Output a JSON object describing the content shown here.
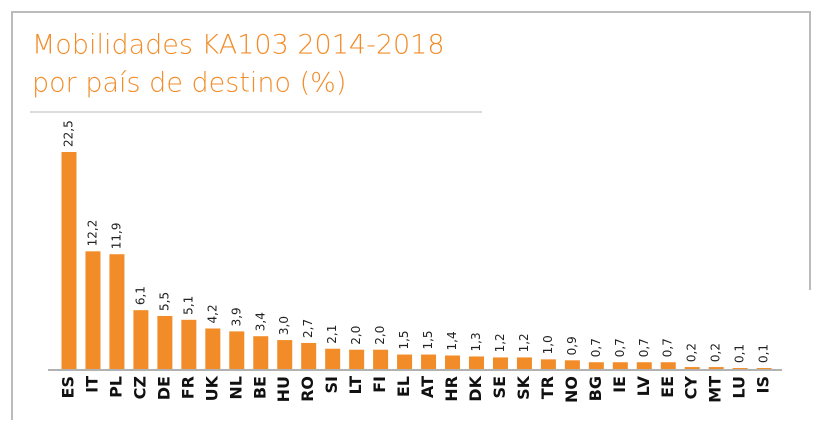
{
  "chart_data": {
    "type": "bar",
    "title_lines": [
      "Mobilidades KA103 2014-2018",
      "por país de destino (%)"
    ],
    "categories": [
      "ES",
      "IT",
      "PL",
      "CZ",
      "DE",
      "FR",
      "UK",
      "NL",
      "BE",
      "HU",
      "RO",
      "SI",
      "LT",
      "FI",
      "EL",
      "AT",
      "HR",
      "DK",
      "SE",
      "SK",
      "TR",
      "NO",
      "BG",
      "IE",
      "LV",
      "EE",
      "CY",
      "MT",
      "LU",
      "IS"
    ],
    "values": [
      22.5,
      12.2,
      11.9,
      6.1,
      5.5,
      5.1,
      4.2,
      3.9,
      3.4,
      3.0,
      2.7,
      2.1,
      2.0,
      2.0,
      1.5,
      1.5,
      1.4,
      1.3,
      1.2,
      1.2,
      1.0,
      0.9,
      0.7,
      0.7,
      0.7,
      0.7,
      0.2,
      0.2,
      0.1,
      0.1
    ],
    "value_labels": [
      "22,5",
      "12,2",
      "11,9",
      "6,1",
      "5,5",
      "5,1",
      "4,2",
      "3,9",
      "3,4",
      "3,0",
      "2,7",
      "2,1",
      "2,0",
      "2,0",
      "1,5",
      "1,5",
      "1,4",
      "1,3",
      "1,2",
      "1,2",
      "1,0",
      "0,9",
      "0,7",
      "0,7",
      "0,7",
      "0,7",
      "0,2",
      "0,2",
      "0,1",
      "0,1"
    ],
    "color": "#f28c28",
    "ylim": [
      0,
      22.5
    ]
  }
}
